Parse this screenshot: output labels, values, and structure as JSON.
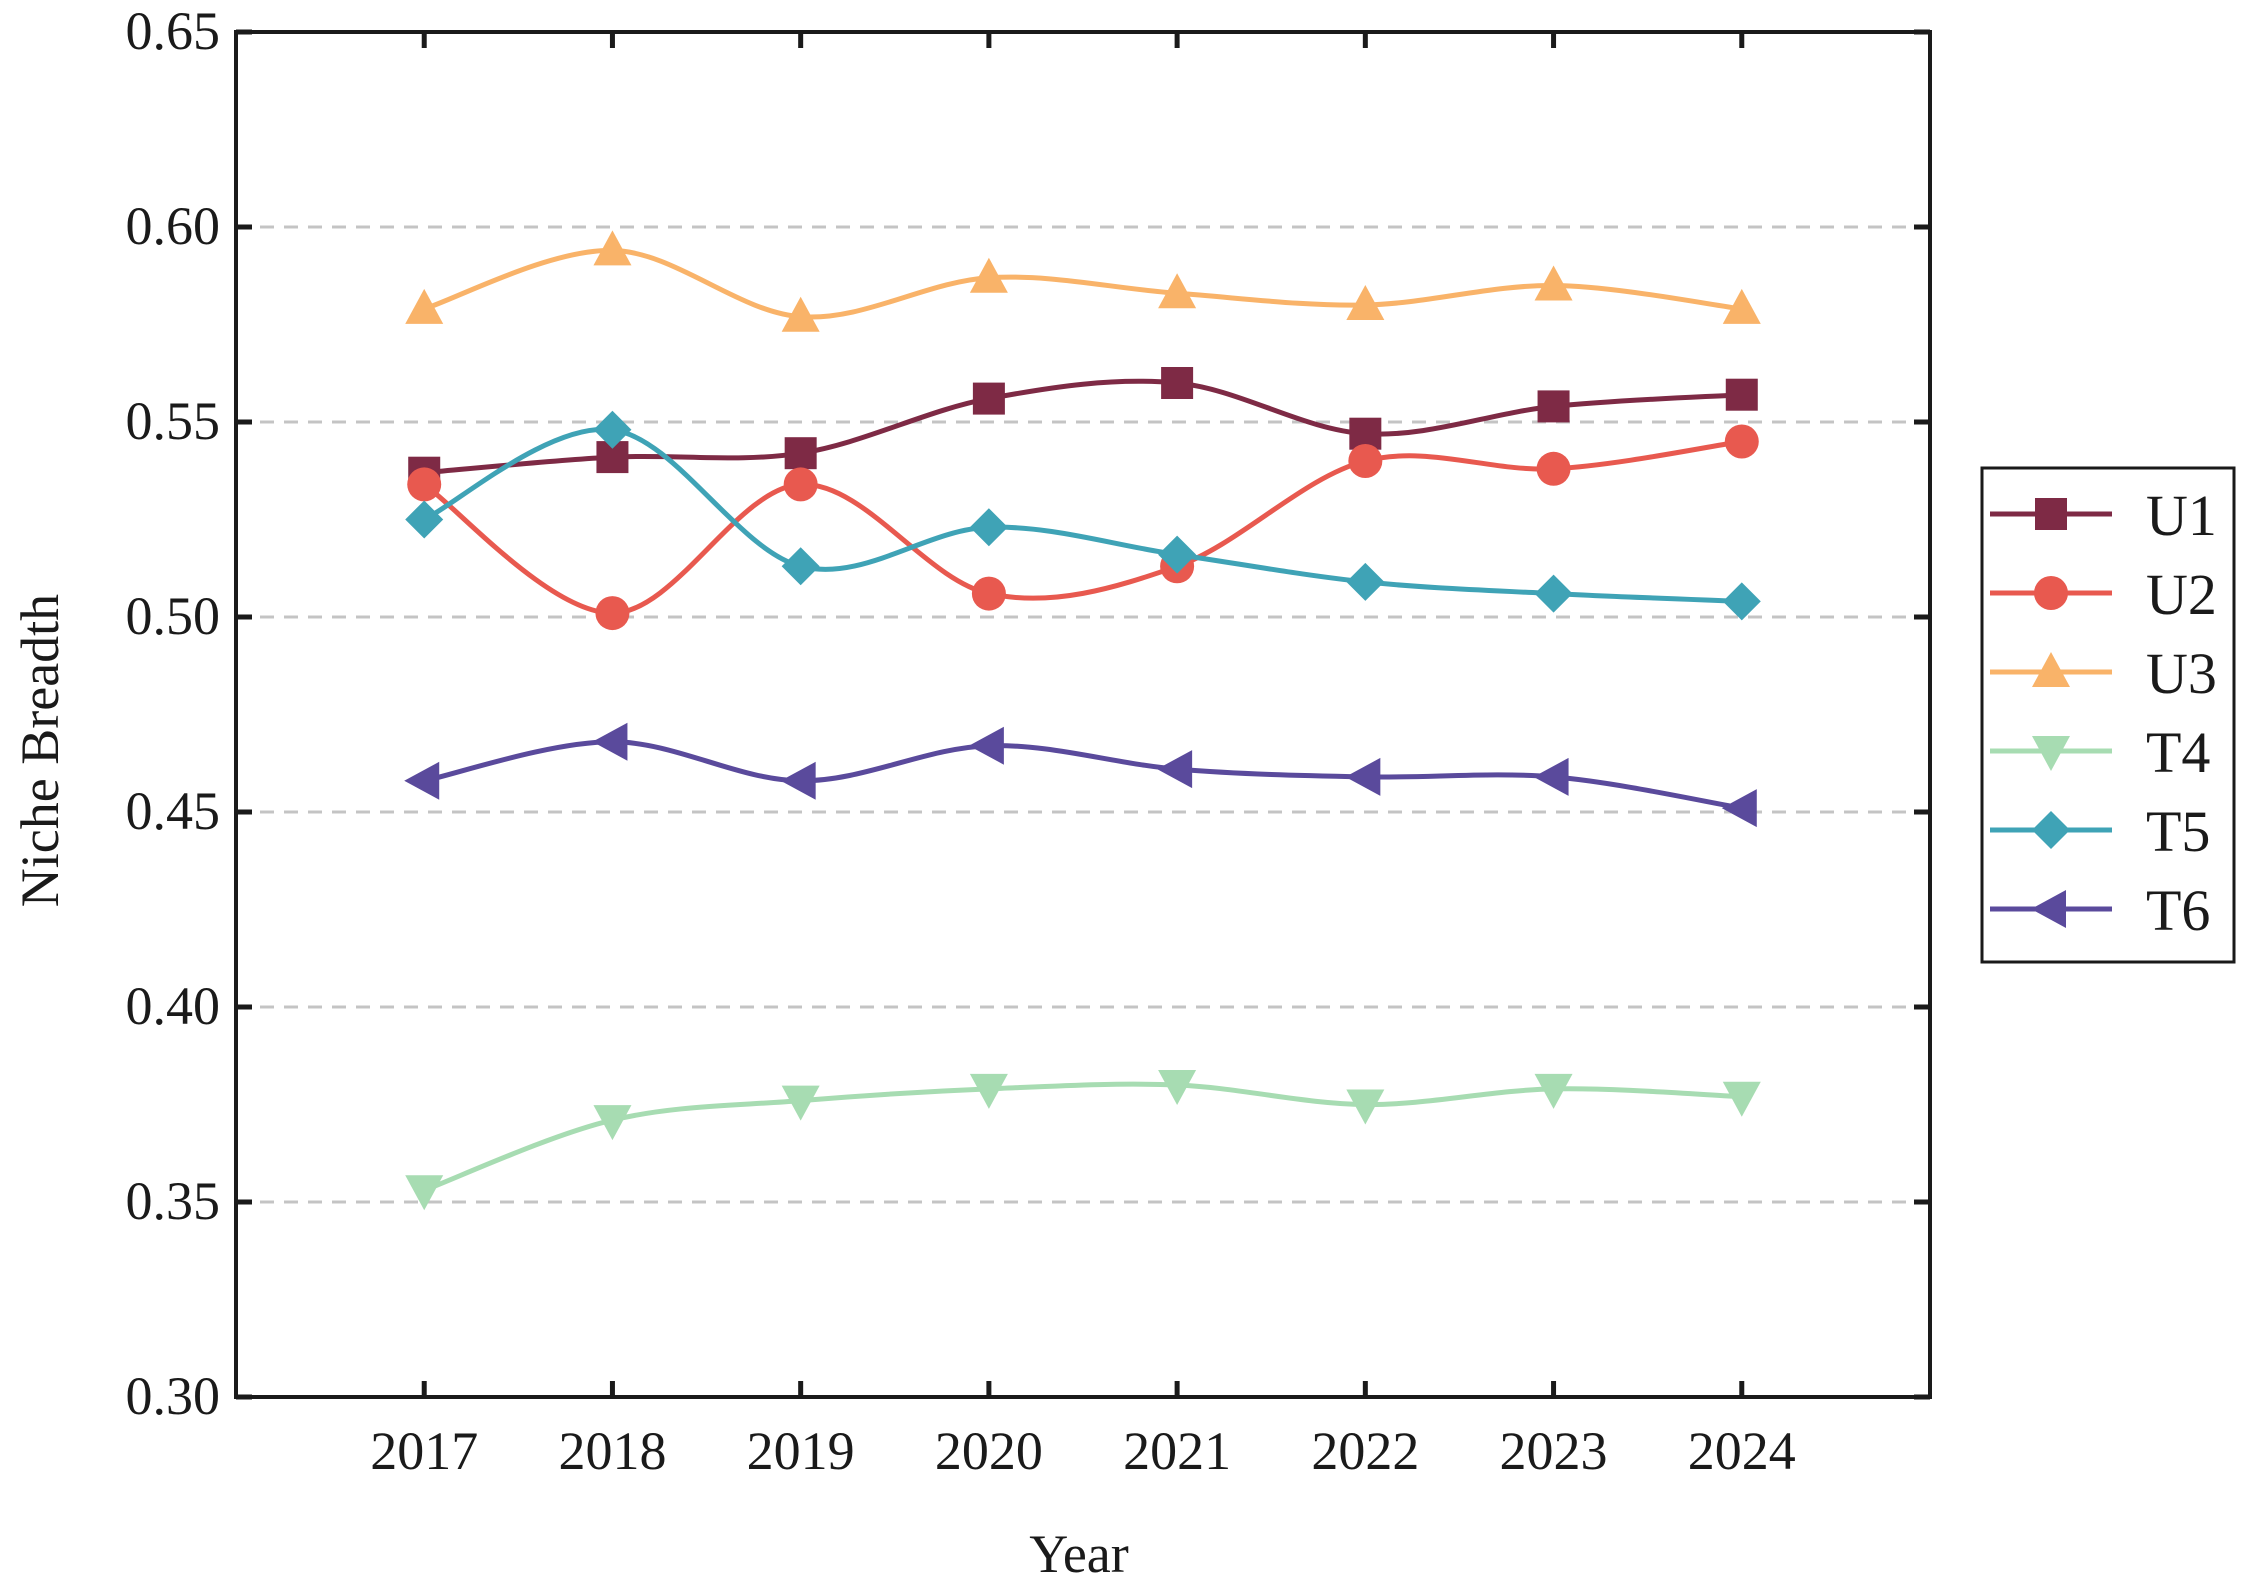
{
  "chart_data": {
    "type": "line",
    "title": "",
    "xlabel": "Year",
    "ylabel": "Niche Breadth",
    "x": [
      "2017",
      "2018",
      "2019",
      "2020",
      "2021",
      "2022",
      "2023",
      "2024"
    ],
    "xlim": [
      2016,
      2025
    ],
    "ylim": [
      0.3,
      0.65
    ],
    "yticks": [
      "0.30",
      "0.35",
      "0.40",
      "0.45",
      "0.50",
      "0.55",
      "0.60",
      "0.65"
    ],
    "grid": "horizontal dashed",
    "legend_position": "right outside",
    "smooth": true,
    "series": [
      {
        "name": "U1",
        "color": "#7e2a45",
        "marker": "square",
        "values": [
          0.537,
          0.541,
          0.542,
          0.556,
          0.56,
          0.547,
          0.554,
          0.557
        ]
      },
      {
        "name": "U2",
        "color": "#e8594f",
        "marker": "circle",
        "values": [
          0.534,
          0.501,
          0.534,
          0.506,
          0.513,
          0.54,
          0.538,
          0.545
        ]
      },
      {
        "name": "U3",
        "color": "#f9b369",
        "marker": "triangle-up",
        "values": [
          0.579,
          0.594,
          0.577,
          0.587,
          0.583,
          0.58,
          0.585,
          0.579
        ]
      },
      {
        "name": "T4",
        "color": "#a7dcb2",
        "marker": "triangle-down",
        "values": [
          0.353,
          0.371,
          0.376,
          0.379,
          0.38,
          0.375,
          0.379,
          0.377
        ]
      },
      {
        "name": "T5",
        "color": "#3fa3b6",
        "marker": "diamond",
        "values": [
          0.525,
          0.548,
          0.513,
          0.523,
          0.516,
          0.509,
          0.506,
          0.504
        ]
      },
      {
        "name": "T6",
        "color": "#5a4a9c",
        "marker": "triangle-left",
        "values": [
          0.458,
          0.468,
          0.458,
          0.467,
          0.461,
          0.459,
          0.459,
          0.451
        ]
      }
    ]
  }
}
